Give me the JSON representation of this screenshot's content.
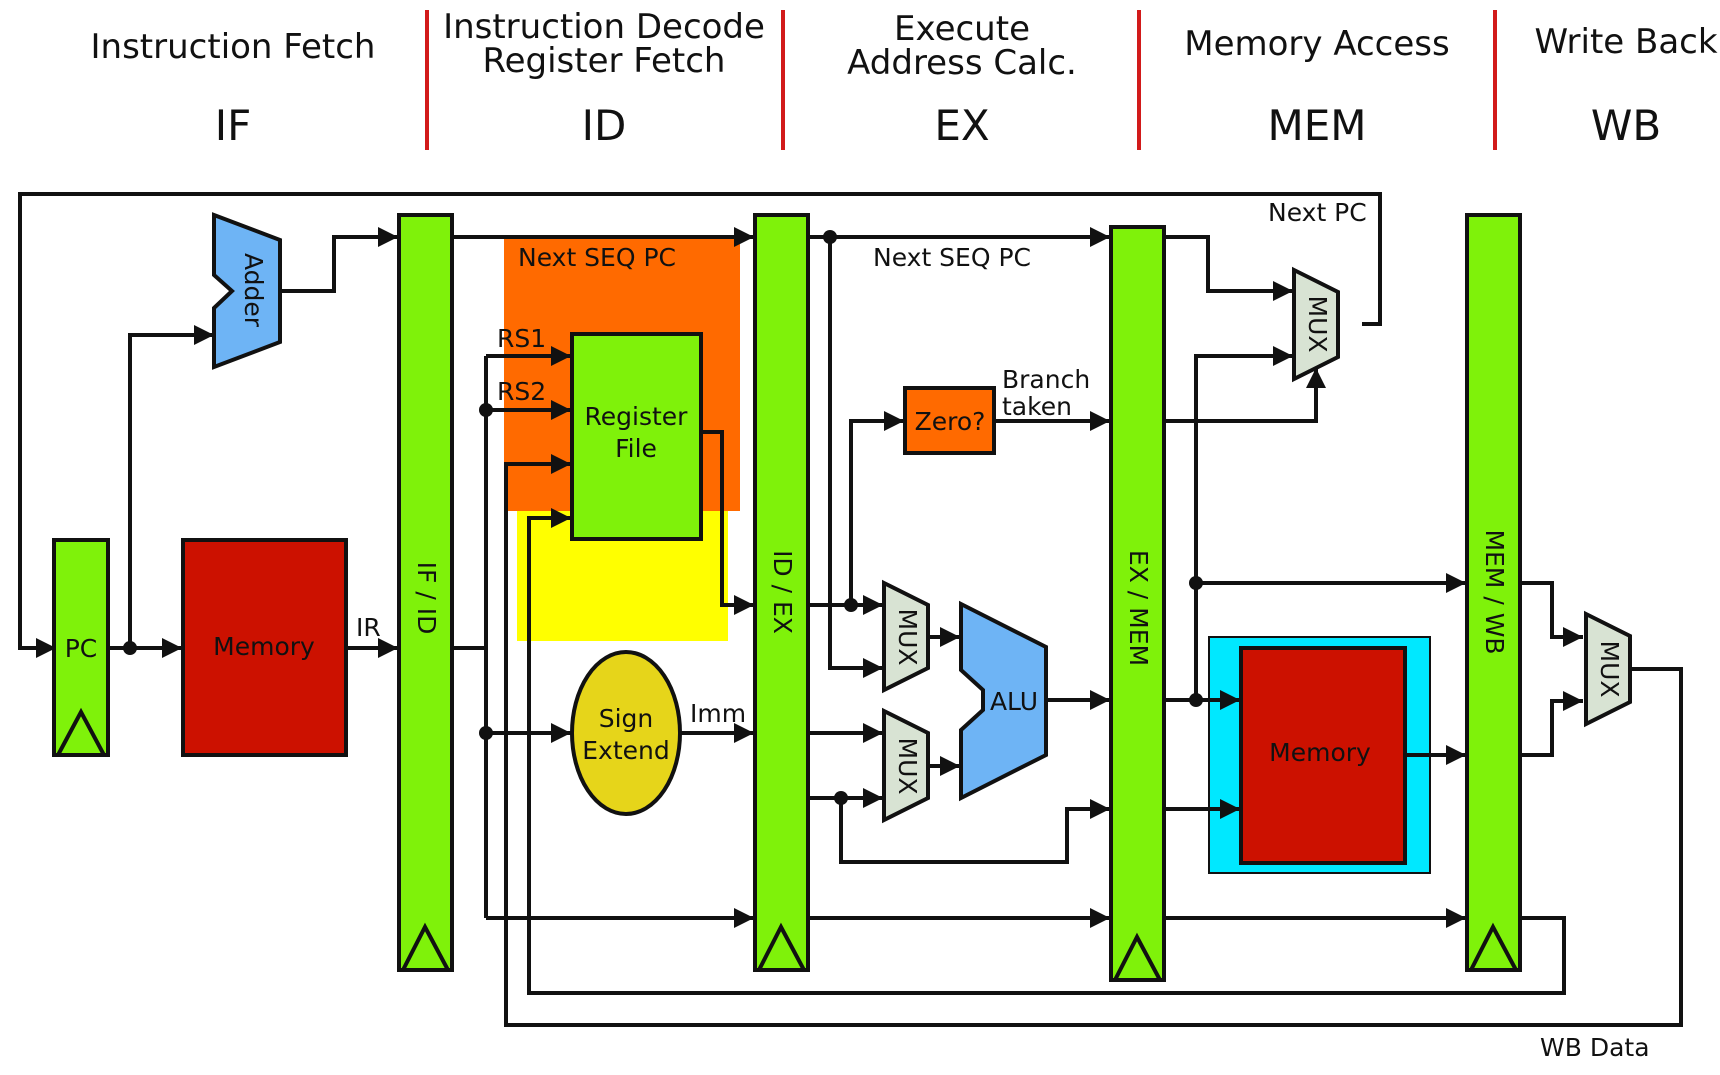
{
  "stages": [
    {
      "title": "Instruction Fetch",
      "abbr": "IF"
    },
    {
      "title": "Instruction Decode",
      "title2": "Register Fetch",
      "abbr": "ID"
    },
    {
      "title": "Execute",
      "title2": "Address Calc.",
      "abbr": "EX"
    },
    {
      "title": "Memory Access",
      "abbr": "MEM"
    },
    {
      "title": "Write Back",
      "abbr": "WB"
    }
  ],
  "blocks": {
    "pc": "PC",
    "instr_memory": "Memory",
    "adder": "Adder",
    "if_id": "IF / ID",
    "register_file_1": "Register",
    "register_file_2": "File",
    "sign_extend_1": "Sign",
    "sign_extend_2": "Extend",
    "id_ex": "ID / EX",
    "zero": "Zero?",
    "mux": "MUX",
    "alu": "ALU",
    "ex_mem": "EX / MEM",
    "data_memory": "Memory",
    "mem_wb": "MEM / WB"
  },
  "labels": {
    "ir": "IR",
    "rs1": "RS1",
    "rs2": "RS2",
    "imm": "Imm",
    "next_seq_pc_id": "Next SEQ PC",
    "next_seq_pc_ex": "Next SEQ PC",
    "next_pc": "Next PC",
    "branch_1": "Branch",
    "branch_2": "taken",
    "wb_data": "WB Data"
  },
  "colors": {
    "latch_green": "#7ff20a",
    "memory_red": "#cc1100",
    "adder_blue": "#6eb4f5",
    "decode_orange": "#ff6a00",
    "decode_yellow": "#ffff00",
    "sign_extend_yellow": "#e6d51a",
    "mux_gray": "#d8e3d3",
    "data_memory_cyan": "#00e8ff",
    "stage_separator_red": "#d21a1a"
  }
}
